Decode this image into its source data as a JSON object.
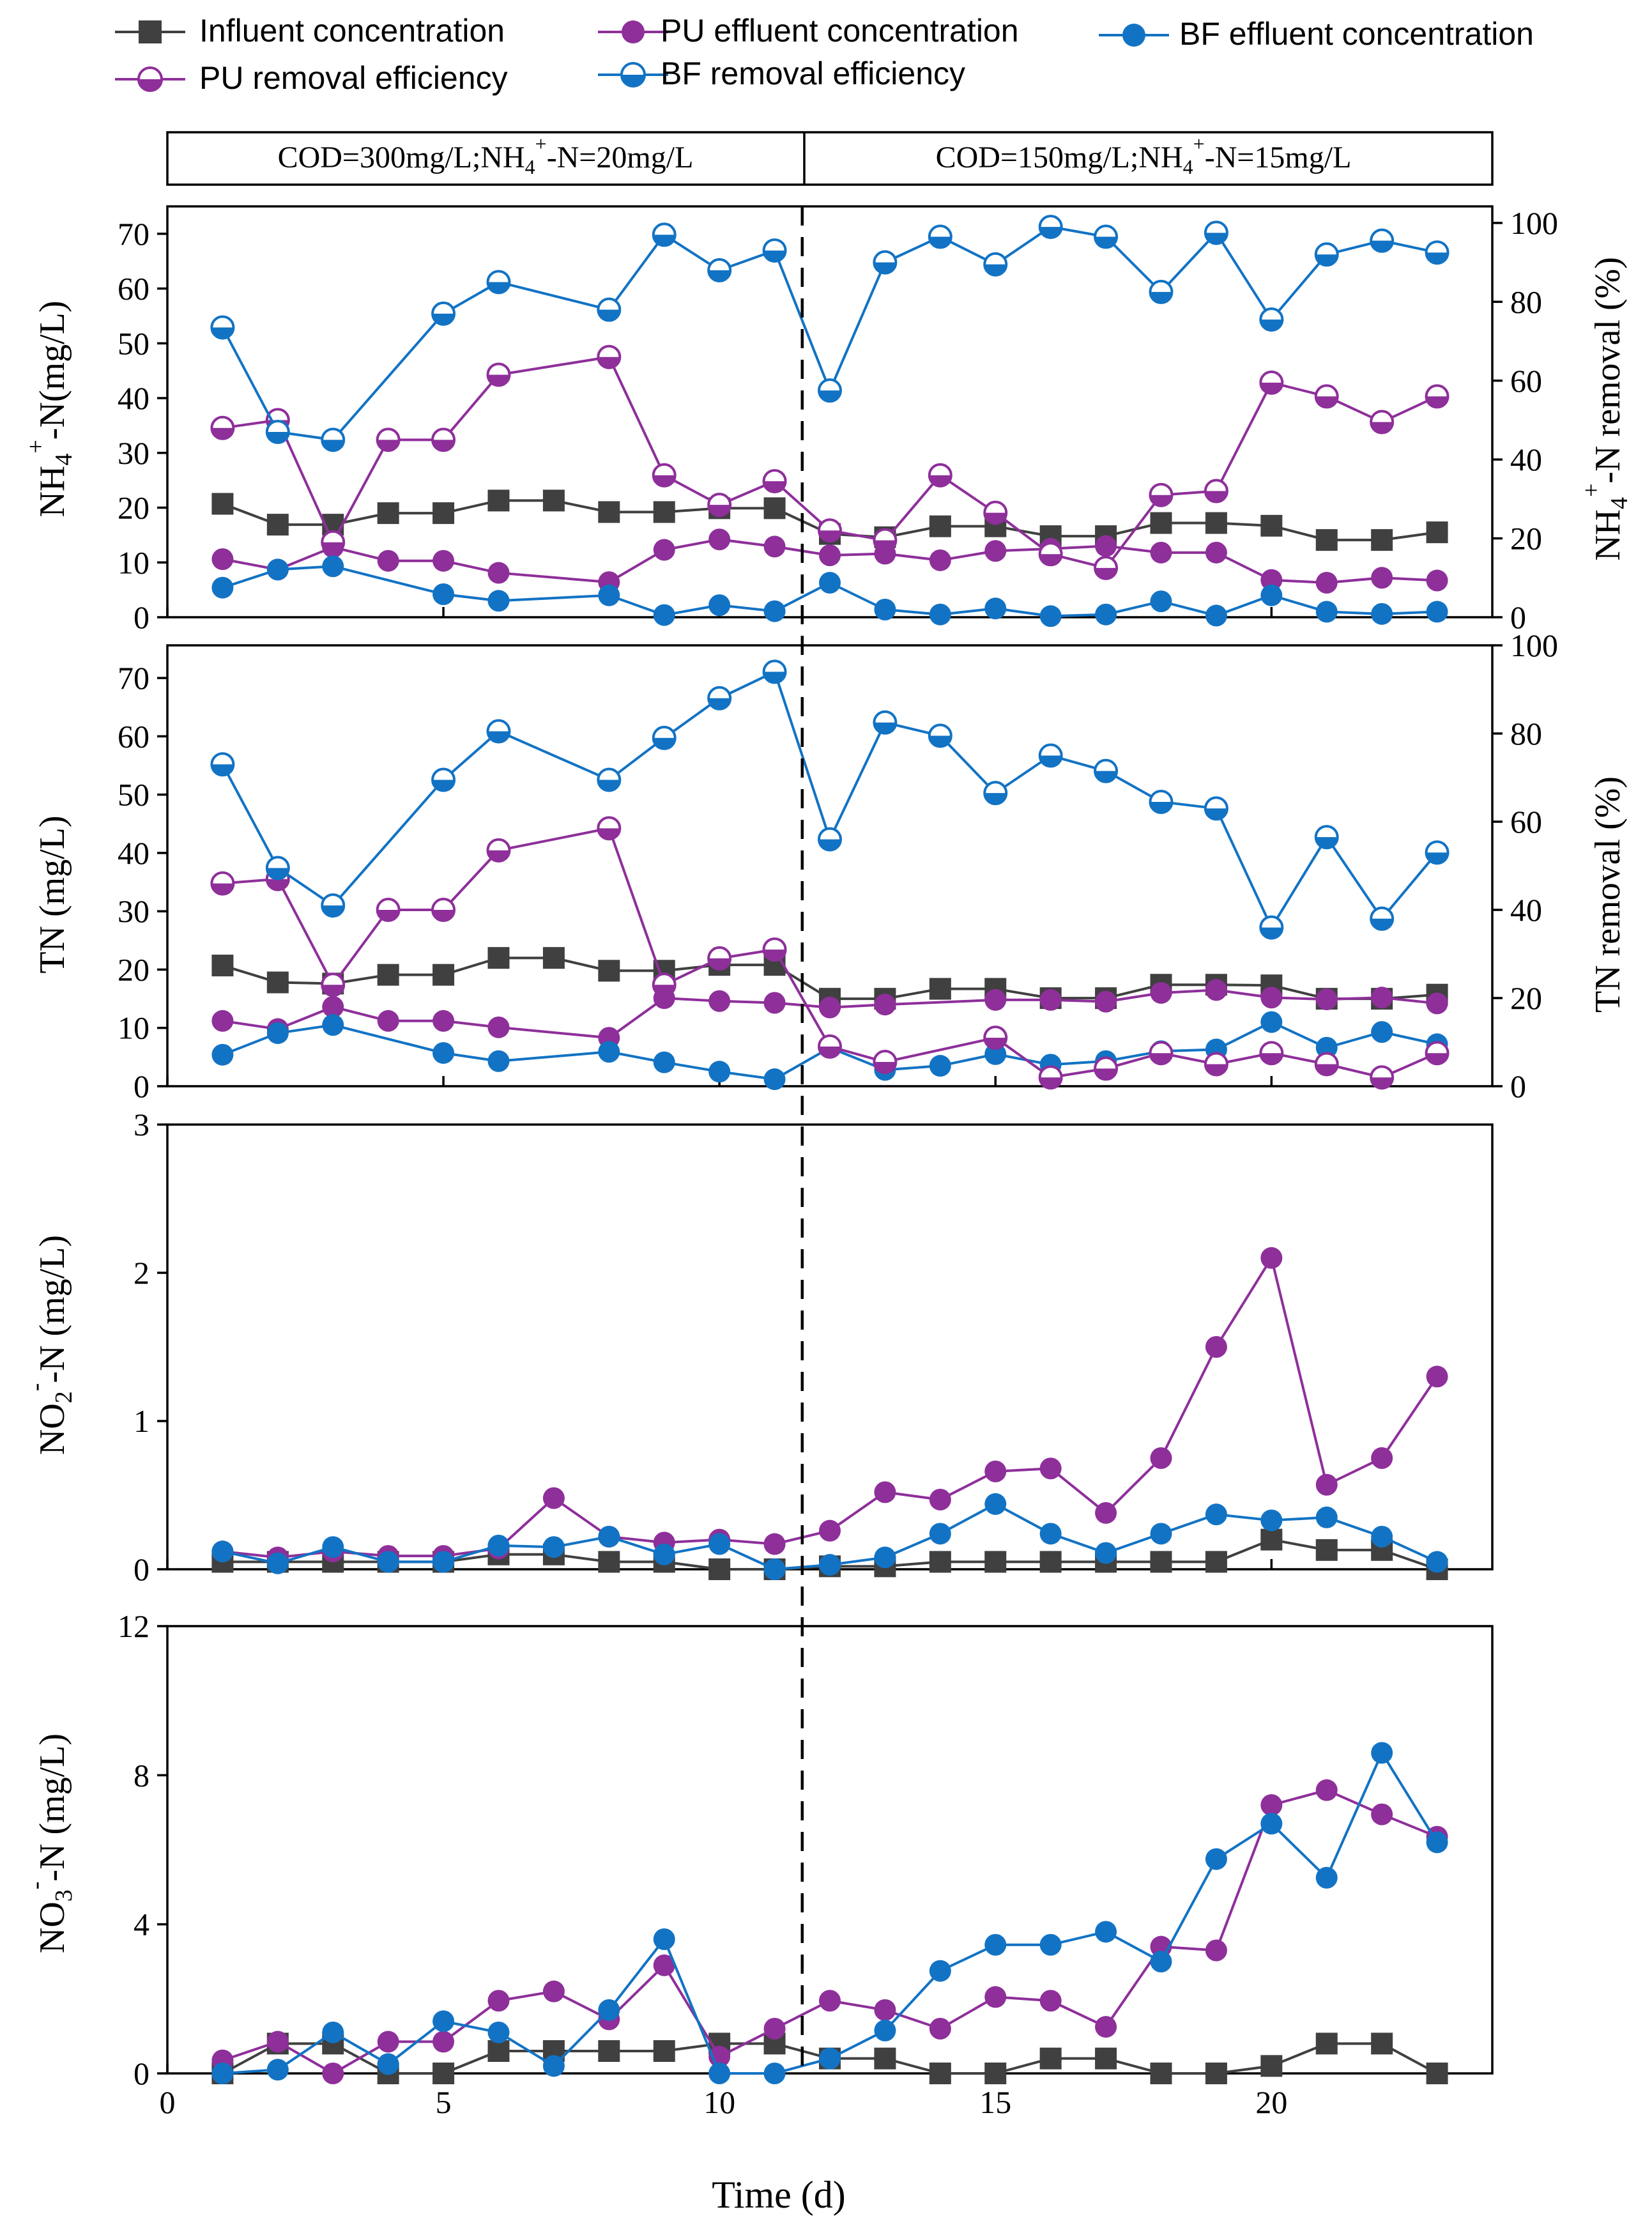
{
  "figure": {
    "xlabel": "Time (d)",
    "xlim": [
      0,
      24
    ],
    "xticks": [
      0,
      5,
      10,
      15,
      20
    ],
    "phase_boundary_day": 11.5,
    "phase_labels": [
      {
        "pre": "COD=300mg/L;NH",
        "sub": "4",
        "sup": "+",
        "post": "-N=20mg/L"
      },
      {
        "pre": "COD=150mg/L;NH",
        "sub": "4",
        "sup": "+",
        "post": "-N=15mg/L"
      }
    ],
    "colors": {
      "influent": "#404040",
      "pu": "#8e2f9a",
      "bf": "#1273c4"
    }
  },
  "legend": [
    {
      "key": "influent",
      "label": "Influent concentration",
      "marker": "square"
    },
    {
      "key": "pu",
      "label": "PU effluent concentration",
      "marker": "circle"
    },
    {
      "key": "bf",
      "label": "BF effluent concentration",
      "marker": "circle"
    },
    {
      "key": "pu",
      "label": "PU removal efficiency",
      "marker": "half"
    },
    {
      "key": "bf",
      "label": "BF removal efficiency",
      "marker": "half"
    }
  ],
  "chart_data": [
    {
      "type": "line",
      "id": "nh4",
      "ylabel": {
        "pre": "NH",
        "sub": "4",
        "sup": "+",
        "post": "-N(mg/L)"
      },
      "ylim": [
        0,
        75
      ],
      "yticks": [
        0,
        10,
        20,
        30,
        40,
        50,
        60,
        70
      ],
      "y2label": {
        "pre": "NH",
        "sub": "4",
        "sup": "+",
        "post": "-N removal (%)"
      },
      "y2lim": [
        0,
        104.2
      ],
      "y2ticks": [
        0,
        20,
        40,
        60,
        80,
        100
      ],
      "x": [
        1,
        2,
        3,
        4,
        5,
        6,
        7,
        8,
        9,
        10,
        11,
        12,
        13,
        14,
        15,
        16,
        17,
        18,
        19,
        20,
        21,
        22,
        23
      ],
      "series": [
        {
          "name": "Influent concentration",
          "key": "influent",
          "marker": "square",
          "axis": "left",
          "values": [
            20.7,
            16.9,
            16.9,
            19.0,
            19.0,
            21.3,
            21.3,
            19.2,
            19.2,
            19.9,
            19.9,
            15.2,
            14.6,
            16.6,
            16.6,
            14.8,
            14.8,
            17.2,
            17.2,
            16.7,
            14.1,
            14.1,
            15.5
          ]
        },
        {
          "name": "PU effluent concentration",
          "key": "pu",
          "marker": "circle",
          "axis": "left",
          "values": [
            10.6,
            8.7,
            12.8,
            10.3,
            10.3,
            8.1,
            null,
            6.4,
            12.3,
            14.2,
            12.9,
            11.3,
            11.6,
            10.4,
            12.1,
            12.5,
            13.0,
            11.8,
            11.8,
            6.8,
            6.3,
            7.2,
            6.7
          ]
        },
        {
          "name": "BF effluent concentration",
          "key": "bf",
          "marker": "circle",
          "axis": "left",
          "values": [
            5.4,
            8.7,
            9.3,
            null,
            4.2,
            3.0,
            null,
            4.0,
            0.4,
            2.2,
            1.1,
            6.3,
            1.4,
            0.5,
            1.6,
            0.2,
            0.5,
            2.9,
            0.3,
            4.0,
            1.0,
            0.6,
            1.0
          ]
        },
        {
          "name": "PU removal efficiency",
          "key": "pu",
          "marker": "half",
          "axis": "right",
          "values": [
            48.0,
            50.0,
            19.0,
            45.0,
            45.0,
            61.5,
            null,
            66.0,
            36.0,
            28.5,
            34.5,
            22.0,
            19.5,
            36.0,
            26.5,
            16.0,
            12.5,
            31.0,
            32.0,
            59.5,
            56.0,
            49.5,
            56.0
          ]
        },
        {
          "name": "BF removal efficiency",
          "key": "bf",
          "marker": "half",
          "axis": "right",
          "values": [
            73.5,
            47.0,
            45.0,
            null,
            77.0,
            85.0,
            null,
            78.0,
            97.0,
            88.0,
            93.0,
            57.5,
            90.0,
            96.5,
            89.5,
            99.0,
            96.5,
            82.5,
            97.5,
            75.5,
            92.0,
            95.5,
            92.5
          ]
        }
      ]
    },
    {
      "type": "line",
      "id": "tn",
      "ylabel": {
        "pre": "TN (mg/L)"
      },
      "ylim": [
        0,
        75.6
      ],
      "yticks": [
        0,
        10,
        20,
        30,
        40,
        50,
        60,
        70
      ],
      "y2label": {
        "pre": "TN removal (%)"
      },
      "y2lim": [
        0,
        100
      ],
      "y2ticks": [
        0,
        20,
        40,
        60,
        80,
        100
      ],
      "x": [
        1,
        2,
        3,
        4,
        5,
        6,
        7,
        8,
        9,
        10,
        11,
        12,
        13,
        14,
        15,
        16,
        17,
        18,
        19,
        20,
        21,
        22,
        23
      ],
      "series": [
        {
          "name": "Influent concentration",
          "key": "influent",
          "marker": "square",
          "axis": "left",
          "values": [
            20.7,
            17.8,
            17.6,
            19.1,
            19.1,
            22.0,
            22.0,
            19.8,
            19.8,
            20.8,
            20.8,
            15.0,
            15.0,
            16.7,
            16.7,
            15.1,
            15.1,
            17.4,
            17.4,
            17.3,
            15.0,
            15.0,
            15.7
          ]
        },
        {
          "name": "PU effluent concentration",
          "key": "pu",
          "marker": "circle",
          "axis": "left",
          "values": [
            11.2,
            9.8,
            13.6,
            11.2,
            11.2,
            10.1,
            null,
            8.3,
            15.1,
            14.6,
            14.3,
            13.5,
            14.0,
            null,
            14.8,
            14.8,
            14.5,
            16.0,
            16.5,
            15.2,
            14.9,
            15.2,
            14.2
          ]
        },
        {
          "name": "BF effluent concentration",
          "key": "bf",
          "marker": "circle",
          "axis": "left",
          "values": [
            5.4,
            9.1,
            10.5,
            null,
            5.7,
            4.3,
            null,
            5.9,
            4.1,
            2.5,
            1.2,
            6.6,
            2.8,
            3.5,
            5.5,
            3.7,
            4.3,
            6.0,
            6.3,
            11.0,
            6.6,
            9.3,
            7.2
          ]
        },
        {
          "name": "PU removal efficiency",
          "key": "pu",
          "marker": "half",
          "axis": "right",
          "values": [
            46.0,
            47.0,
            23.0,
            40.0,
            40.0,
            53.5,
            null,
            58.5,
            23.0,
            29.0,
            31.0,
            9.0,
            5.5,
            null,
            11.0,
            2.0,
            4.0,
            7.5,
            5.0,
            7.5,
            5.0,
            2.0,
            7.5
          ]
        },
        {
          "name": "BF removal efficiency",
          "key": "bf",
          "marker": "half",
          "axis": "right",
          "values": [
            73.0,
            49.5,
            41.0,
            null,
            69.5,
            80.5,
            null,
            69.5,
            79.0,
            88.0,
            94.0,
            56.0,
            82.5,
            79.5,
            66.5,
            75.0,
            71.5,
            64.5,
            63.0,
            36.0,
            56.5,
            38.0,
            53.0
          ]
        }
      ]
    },
    {
      "type": "line",
      "id": "no2",
      "ylabel": {
        "pre": "NO",
        "sub": "2",
        "sup": "-",
        "post": "-N (mg/L)"
      },
      "ylim": [
        0,
        3
      ],
      "yticks": [
        0,
        1,
        2,
        3
      ],
      "x": [
        1,
        2,
        3,
        4,
        5,
        6,
        7,
        8,
        9,
        10,
        11,
        12,
        13,
        14,
        15,
        16,
        17,
        18,
        19,
        20,
        21,
        22,
        23
      ],
      "series": [
        {
          "name": "Influent concentration",
          "key": "influent",
          "marker": "square",
          "axis": "left",
          "values": [
            0.05,
            0.05,
            0.05,
            0.05,
            0.05,
            0.1,
            0.1,
            0.05,
            0.05,
            0.0,
            0.0,
            0.02,
            0.02,
            0.05,
            0.05,
            0.05,
            0.05,
            0.05,
            0.05,
            0.2,
            0.13,
            0.13,
            0.0
          ]
        },
        {
          "name": "PU effluent concentration",
          "key": "pu",
          "marker": "circle",
          "axis": "left",
          "values": [
            0.12,
            0.08,
            0.12,
            0.09,
            0.09,
            0.14,
            0.48,
            0.22,
            0.18,
            0.2,
            0.17,
            0.26,
            0.52,
            0.47,
            0.66,
            0.68,
            0.38,
            0.75,
            1.5,
            2.1,
            0.57,
            0.75,
            1.3
          ]
        },
        {
          "name": "BF effluent concentration",
          "key": "bf",
          "marker": "circle",
          "axis": "left",
          "values": [
            0.12,
            0.04,
            0.15,
            0.05,
            0.05,
            0.16,
            0.15,
            0.22,
            0.1,
            0.17,
            0.0,
            0.03,
            0.08,
            0.24,
            0.44,
            0.24,
            0.11,
            0.24,
            0.37,
            0.33,
            0.35,
            0.22,
            0.05
          ]
        }
      ]
    },
    {
      "type": "line",
      "id": "no3",
      "ylabel": {
        "pre": "NO",
        "sub": "3",
        "sup": "-",
        "post": "-N (mg/L)"
      },
      "ylim": [
        0,
        12
      ],
      "yticks": [
        0,
        4,
        8,
        12
      ],
      "x": [
        1,
        2,
        3,
        4,
        5,
        6,
        7,
        8,
        9,
        10,
        11,
        12,
        13,
        14,
        15,
        16,
        17,
        18,
        19,
        20,
        21,
        22,
        23
      ],
      "series": [
        {
          "name": "Influent concentration",
          "key": "influent",
          "marker": "square",
          "axis": "left",
          "values": [
            0.0,
            0.8,
            0.8,
            0.0,
            0.0,
            0.6,
            0.6,
            0.6,
            0.6,
            0.8,
            0.8,
            0.4,
            0.4,
            0.0,
            0.0,
            0.4,
            0.4,
            0.0,
            0.0,
            0.2,
            0.8,
            0.8,
            0.0
          ]
        },
        {
          "name": "PU effluent concentration",
          "key": "pu",
          "marker": "circle",
          "axis": "left",
          "values": [
            0.35,
            0.85,
            0.0,
            0.85,
            0.85,
            1.95,
            2.2,
            1.45,
            2.9,
            0.45,
            1.2,
            1.95,
            1.7,
            1.2,
            2.05,
            1.95,
            1.25,
            3.4,
            3.3,
            7.2,
            7.6,
            6.95,
            6.35
          ]
        },
        {
          "name": "BF effluent concentration",
          "key": "bf",
          "marker": "circle",
          "axis": "left",
          "values": [
            0.0,
            0.1,
            1.1,
            0.25,
            1.4,
            1.1,
            0.2,
            1.7,
            3.6,
            0.0,
            0.0,
            0.4,
            1.15,
            2.75,
            3.45,
            3.45,
            3.8,
            3.0,
            5.75,
            6.7,
            5.25,
            8.6,
            6.2
          ]
        }
      ]
    }
  ]
}
